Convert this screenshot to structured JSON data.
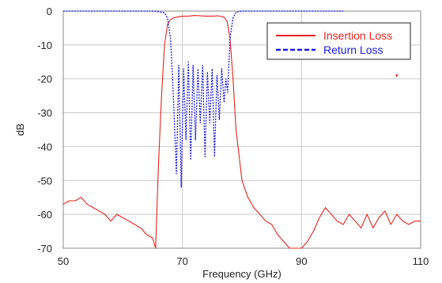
{
  "chart_data": {
    "type": "line",
    "title": "",
    "xlabel": "Frequency (GHz)",
    "ylabel": "dB",
    "xlim": [
      50,
      110
    ],
    "ylim": [
      -70,
      0
    ],
    "xticks": [
      50,
      70,
      90,
      110
    ],
    "yticks": [
      0,
      -10,
      -20,
      -30,
      -40,
      -50,
      -60,
      -70
    ],
    "xtick_labels": [
      "50",
      "70",
      "90",
      "110"
    ],
    "ytick_labels": [
      "0",
      "-10",
      "-20",
      "-30",
      "-40",
      "-50",
      "-60",
      "-70"
    ],
    "grid": true,
    "legend_position": "top-right",
    "series": [
      {
        "name": "Insertion Loss",
        "color": "#e8231c",
        "style": "solid",
        "x": [
          50,
          51,
          52,
          53,
          54,
          55,
          56,
          57,
          58,
          59,
          60,
          61,
          62,
          63,
          64,
          65,
          65.5,
          66,
          66.5,
          67,
          67.5,
          68,
          68.5,
          69,
          70,
          71,
          72,
          73,
          74,
          75,
          76,
          77,
          77.5,
          78,
          78.5,
          79,
          80,
          81,
          82,
          83,
          84,
          85,
          86,
          87,
          88,
          89,
          90,
          91,
          92,
          93,
          94,
          95,
          96,
          97,
          98,
          99,
          100,
          101,
          102,
          103,
          104,
          105,
          106,
          107,
          108,
          109,
          110
        ],
        "y": [
          -57,
          -56,
          -56,
          -55,
          -57,
          -58,
          -59,
          -60,
          -62,
          -60,
          -61,
          -62,
          -63,
          -64,
          -66,
          -67,
          -70,
          -45,
          -25,
          -10,
          -4,
          -2.5,
          -2,
          -1.8,
          -1.5,
          -1.5,
          -1.3,
          -1.4,
          -1.5,
          -1.5,
          -1.4,
          -1.8,
          -3,
          -8,
          -20,
          -35,
          -50,
          -55,
          -58,
          -60,
          -62,
          -63,
          -66,
          -68,
          -70,
          -70,
          -70,
          -68,
          -65,
          -61,
          -58,
          -60,
          -62,
          -63,
          -60,
          -62,
          -64,
          -60,
          -64,
          -61,
          -59,
          -63,
          -60,
          -62,
          -63,
          -62,
          -62
        ]
      },
      {
        "name": "Return Loss",
        "color": "#1a1ae6",
        "style": "dashed",
        "x": [
          50,
          55,
          60,
          62,
          64,
          65,
          66,
          67,
          67.5,
          68,
          68.3,
          68.6,
          69,
          69.4,
          69.8,
          70.2,
          70.6,
          71,
          71.4,
          71.8,
          72.2,
          72.6,
          73,
          73.4,
          73.8,
          74.2,
          74.6,
          75,
          75.4,
          75.8,
          76.2,
          76.6,
          77,
          77.3,
          77.6,
          78,
          78.5,
          79,
          80,
          82,
          85,
          88,
          90,
          92,
          95,
          97
        ],
        "y": [
          0,
          0,
          0,
          0,
          0,
          0,
          -0.2,
          -0.5,
          -2,
          -8,
          -18,
          -30,
          -48,
          -16,
          -52,
          -17,
          -38,
          -15,
          -44,
          -16,
          -38,
          -17,
          -33,
          -16,
          -43,
          -18,
          -33,
          -17,
          -43,
          -19,
          -32,
          -17,
          -27,
          -20,
          -24,
          -8,
          -2,
          -0.3,
          0,
          0,
          0,
          0,
          0,
          0,
          0,
          0
        ]
      }
    ],
    "annotations": [
      {
        "type": "marker",
        "x": 106,
        "y": -19,
        "color": "#e8231c"
      }
    ]
  }
}
